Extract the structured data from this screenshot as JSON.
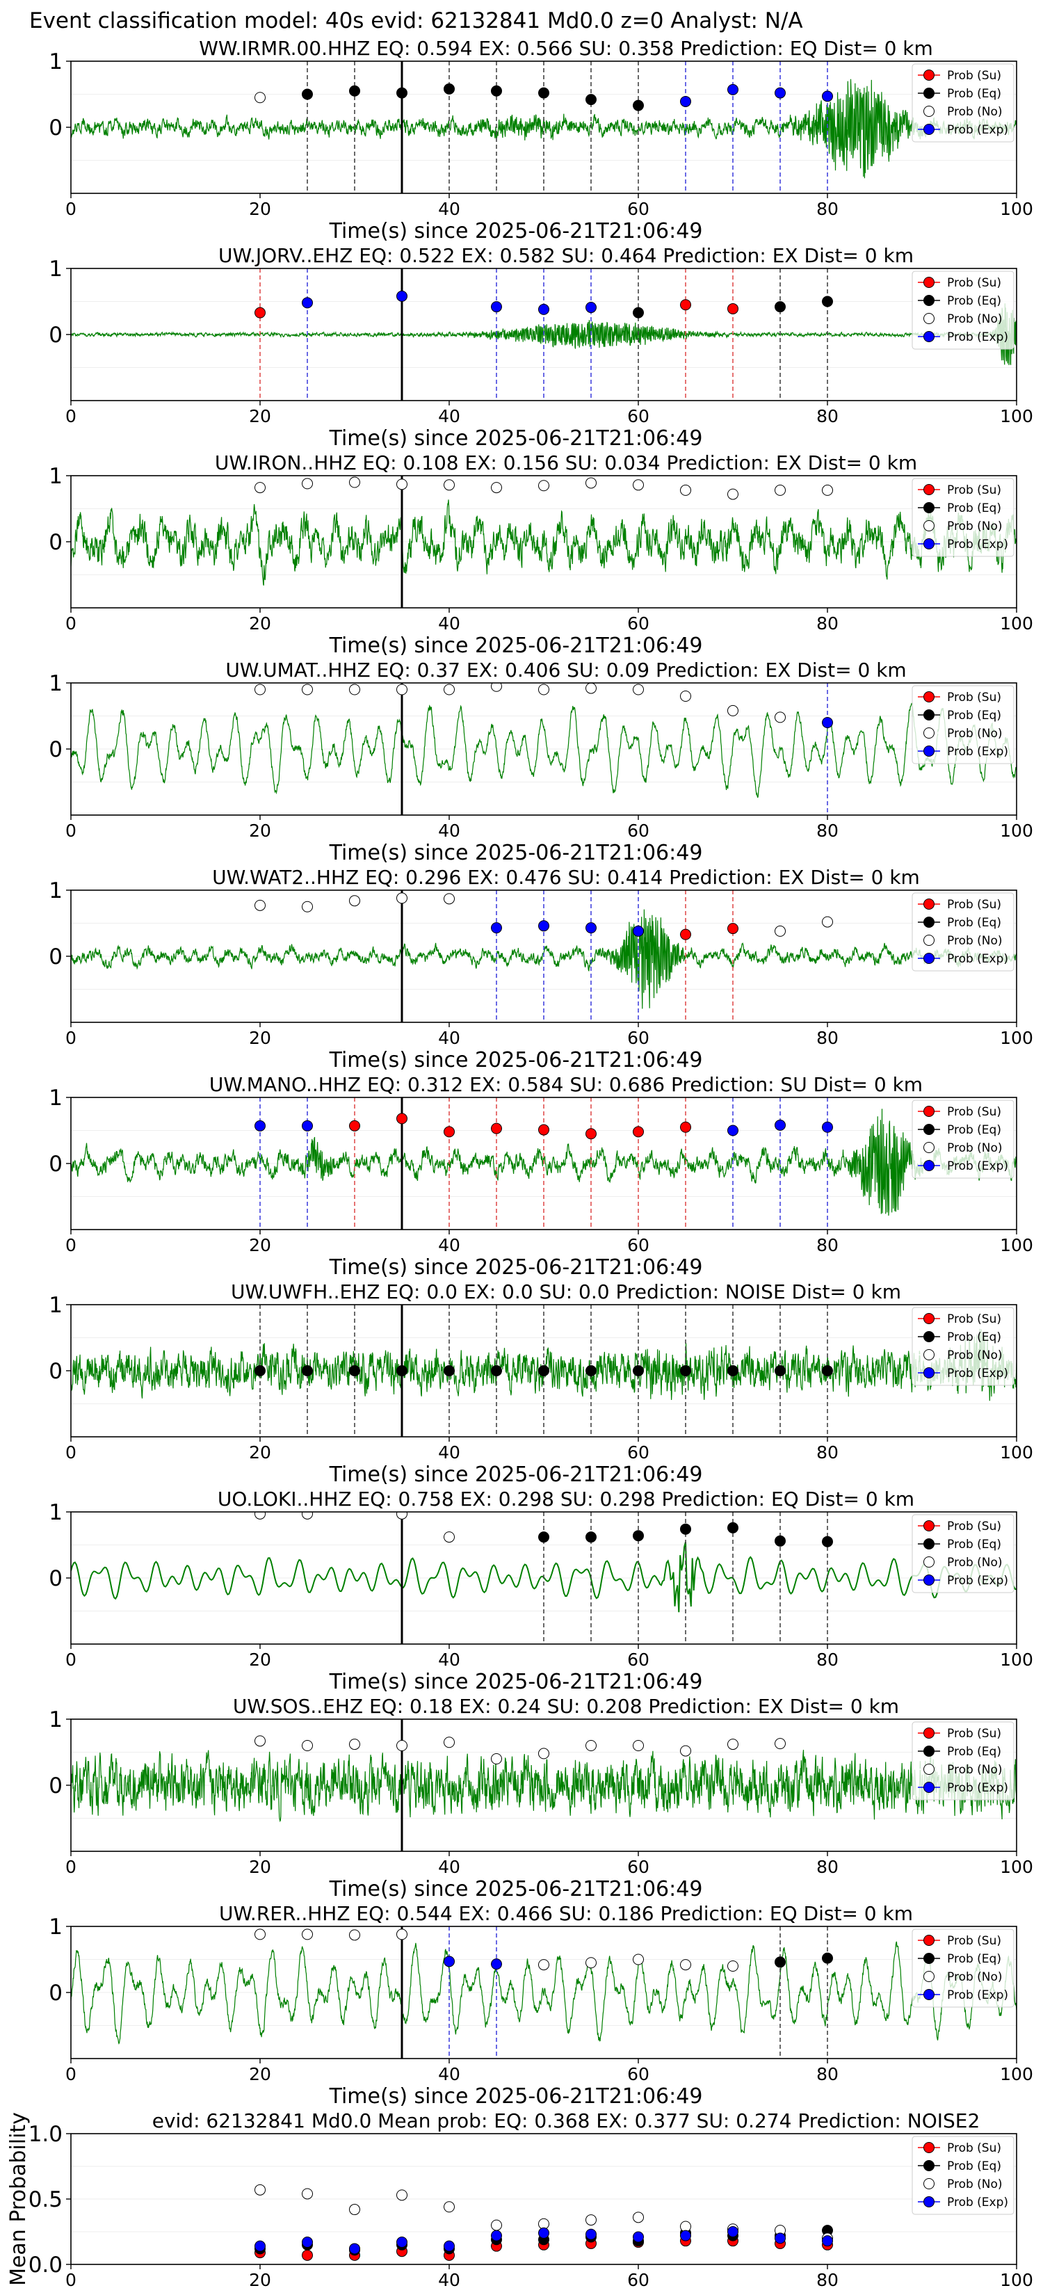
{
  "header": {
    "title": "Event classification model: 40s evid: 62132841 Md0.0 z=0 Analyst: N/A"
  },
  "legend_labels": [
    "Prob (Su)",
    "Prob (Eq)",
    "Prob (No)",
    "Prob (Exp)"
  ],
  "colors": {
    "su": "#ff0000",
    "eq": "#000000",
    "no": "#ffffff",
    "exp": "#0000ff",
    "trace": "#008000"
  },
  "chart_data": [
    {
      "type": "line",
      "title": "WW.IRMR.00.HHZ   EQ: 0.594  EX: 0.566  SU: 0.358   Prediction: EQ    Dist= 0 km",
      "xlabel": "Time(s) since 2025-06-21T21:06:49",
      "ylabel": "",
      "xlim": [
        0,
        100
      ],
      "ylim": [
        -1,
        1
      ],
      "xticks": [
        "0",
        "20",
        "40",
        "60",
        "80",
        "100"
      ],
      "yticks": [
        "1",
        "0"
      ],
      "vline": 35,
      "trace": {
        "noise": 0.08,
        "events": [
          {
            "t": 48,
            "amp": 0.12,
            "dur": 10
          },
          {
            "t": 83,
            "amp": 0.75,
            "dur": 9
          }
        ],
        "lowfreq": 0.05,
        "seed": 11
      },
      "windows": [
        {
          "t": 20,
          "cls": "no",
          "p": 0.45
        },
        {
          "t": 25,
          "cls": "eq",
          "p": 0.5
        },
        {
          "t": 30,
          "cls": "eq",
          "p": 0.55
        },
        {
          "t": 35,
          "cls": "eq",
          "p": 0.52
        },
        {
          "t": 40,
          "cls": "eq",
          "p": 0.58
        },
        {
          "t": 45,
          "cls": "eq",
          "p": 0.55
        },
        {
          "t": 50,
          "cls": "eq",
          "p": 0.52
        },
        {
          "t": 55,
          "cls": "eq",
          "p": 0.42
        },
        {
          "t": 60,
          "cls": "eq",
          "p": 0.33
        },
        {
          "t": 65,
          "cls": "exp",
          "p": 0.39
        },
        {
          "t": 70,
          "cls": "exp",
          "p": 0.57
        },
        {
          "t": 75,
          "cls": "exp",
          "p": 0.52
        },
        {
          "t": 80,
          "cls": "exp",
          "p": 0.47
        }
      ]
    },
    {
      "type": "line",
      "title": "UW.JORV..EHZ   EQ: 0.522  EX: 0.582  SU: 0.464   Prediction: EX    Dist= 0 km",
      "xlabel": "Time(s) since 2025-06-21T21:06:49",
      "ylabel": "",
      "xlim": [
        0,
        100
      ],
      "ylim": [
        -1,
        1
      ],
      "xticks": [
        "0",
        "20",
        "40",
        "60",
        "80",
        "100"
      ],
      "yticks": [
        "1",
        "0"
      ],
      "vline": 35,
      "trace": {
        "noise": 0.02,
        "events": [
          {
            "t": 55,
            "amp": 0.22,
            "dur": 18
          },
          {
            "t": 99,
            "amp": 0.6,
            "dur": 2
          }
        ],
        "lowfreq": 0.0,
        "seed": 23
      },
      "windows": [
        {
          "t": 20,
          "cls": "su",
          "p": 0.33
        },
        {
          "t": 25,
          "cls": "exp",
          "p": 0.48
        },
        {
          "t": 35,
          "cls": "exp",
          "p": 0.58
        },
        {
          "t": 45,
          "cls": "exp",
          "p": 0.42
        },
        {
          "t": 50,
          "cls": "exp",
          "p": 0.38
        },
        {
          "t": 55,
          "cls": "exp",
          "p": 0.41
        },
        {
          "t": 60,
          "cls": "eq",
          "p": 0.33
        },
        {
          "t": 65,
          "cls": "su",
          "p": 0.45
        },
        {
          "t": 70,
          "cls": "su",
          "p": 0.39
        },
        {
          "t": 75,
          "cls": "eq",
          "p": 0.42
        },
        {
          "t": 80,
          "cls": "eq",
          "p": 0.5
        }
      ]
    },
    {
      "type": "line",
      "title": "UW.IRON..HHZ   EQ: 0.108  EX: 0.156  SU: 0.034   Prediction: EX    Dist= 0 km",
      "xlabel": "Time(s) since 2025-06-21T21:06:49",
      "ylabel": "",
      "xlim": [
        0,
        100
      ],
      "ylim": [
        -1,
        1
      ],
      "xticks": [
        "0",
        "20",
        "40",
        "60",
        "80",
        "100"
      ],
      "yticks": [
        "1",
        "0"
      ],
      "vline": 35,
      "trace": {
        "noise": 0.18,
        "events": [],
        "lowfreq": 0.22,
        "seed": 37
      },
      "windows": [
        {
          "t": 20,
          "cls": "no",
          "p": 0.82
        },
        {
          "t": 25,
          "cls": "no",
          "p": 0.88
        },
        {
          "t": 30,
          "cls": "no",
          "p": 0.9
        },
        {
          "t": 35,
          "cls": "no",
          "p": 0.87
        },
        {
          "t": 40,
          "cls": "no",
          "p": 0.86
        },
        {
          "t": 45,
          "cls": "no",
          "p": 0.82
        },
        {
          "t": 50,
          "cls": "no",
          "p": 0.85
        },
        {
          "t": 55,
          "cls": "no",
          "p": 0.89
        },
        {
          "t": 60,
          "cls": "no",
          "p": 0.86
        },
        {
          "t": 65,
          "cls": "no",
          "p": 0.78
        },
        {
          "t": 70,
          "cls": "no",
          "p": 0.72
        },
        {
          "t": 75,
          "cls": "no",
          "p": 0.78
        },
        {
          "t": 80,
          "cls": "no",
          "p": 0.78
        }
      ]
    },
    {
      "type": "line",
      "title": "UW.UMAT..HHZ   EQ: 0.37  EX: 0.406  SU: 0.09   Prediction: EX    Dist= 0 km",
      "xlabel": "Time(s) since 2025-06-21T21:06:49",
      "ylabel": "",
      "xlim": [
        0,
        100
      ],
      "ylim": [
        -1,
        1
      ],
      "xticks": [
        "0",
        "20",
        "40",
        "60",
        "80",
        "100"
      ],
      "yticks": [
        "1",
        "0"
      ],
      "vline": 35,
      "trace": {
        "noise": 0.05,
        "events": [],
        "lowfreq": 0.42,
        "seed": 41
      },
      "windows": [
        {
          "t": 20,
          "cls": "no",
          "p": 0.9
        },
        {
          "t": 25,
          "cls": "no",
          "p": 0.9
        },
        {
          "t": 30,
          "cls": "no",
          "p": 0.9
        },
        {
          "t": 35,
          "cls": "no",
          "p": 0.9
        },
        {
          "t": 40,
          "cls": "no",
          "p": 0.9
        },
        {
          "t": 45,
          "cls": "no",
          "p": 0.95
        },
        {
          "t": 50,
          "cls": "no",
          "p": 0.9
        },
        {
          "t": 55,
          "cls": "no",
          "p": 0.92
        },
        {
          "t": 60,
          "cls": "no",
          "p": 0.9
        },
        {
          "t": 65,
          "cls": "no",
          "p": 0.8
        },
        {
          "t": 70,
          "cls": "no",
          "p": 0.58
        },
        {
          "t": 75,
          "cls": "no",
          "p": 0.48
        },
        {
          "t": 80,
          "cls": "exp",
          "p": 0.4
        }
      ]
    },
    {
      "type": "line",
      "title": "UW.WAT2..HHZ   EQ: 0.296  EX: 0.476  SU: 0.414   Prediction: EX    Dist= 0 km",
      "xlabel": "Time(s) since 2025-06-21T21:06:49",
      "ylabel": "",
      "xlim": [
        0,
        100
      ],
      "ylim": [
        -1,
        1
      ],
      "xticks": [
        "0",
        "20",
        "40",
        "60",
        "80",
        "100"
      ],
      "yticks": [
        "1",
        "0"
      ],
      "vline": 35,
      "trace": {
        "noise": 0.06,
        "events": [
          {
            "t": 61,
            "amp": 0.85,
            "dur": 5
          }
        ],
        "lowfreq": 0.08,
        "seed": 53
      },
      "windows": [
        {
          "t": 20,
          "cls": "no",
          "p": 0.77
        },
        {
          "t": 25,
          "cls": "no",
          "p": 0.75
        },
        {
          "t": 30,
          "cls": "no",
          "p": 0.84
        },
        {
          "t": 35,
          "cls": "no",
          "p": 0.88
        },
        {
          "t": 40,
          "cls": "no",
          "p": 0.87
        },
        {
          "t": 45,
          "cls": "exp",
          "p": 0.43
        },
        {
          "t": 50,
          "cls": "exp",
          "p": 0.46
        },
        {
          "t": 55,
          "cls": "exp",
          "p": 0.43
        },
        {
          "t": 60,
          "cls": "exp",
          "p": 0.38
        },
        {
          "t": 65,
          "cls": "su",
          "p": 0.33
        },
        {
          "t": 70,
          "cls": "su",
          "p": 0.42
        },
        {
          "t": 75,
          "cls": "no",
          "p": 0.38
        },
        {
          "t": 80,
          "cls": "no",
          "p": 0.52
        }
      ]
    },
    {
      "type": "line",
      "title": "UW.MANO..HHZ   EQ: 0.312  EX: 0.584  SU: 0.686   Prediction: SU    Dist= 0 km",
      "xlabel": "Time(s) since 2025-06-21T21:06:49",
      "ylabel": "",
      "xlim": [
        0,
        100
      ],
      "ylim": [
        -1,
        1
      ],
      "xticks": [
        "0",
        "20",
        "40",
        "60",
        "80",
        "100"
      ],
      "yticks": [
        "1",
        "0"
      ],
      "vline": 35,
      "trace": {
        "noise": 0.09,
        "events": [
          {
            "t": 26,
            "amp": 0.25,
            "dur": 3
          },
          {
            "t": 86,
            "amp": 0.9,
            "dur": 5
          }
        ],
        "lowfreq": 0.12,
        "seed": 67
      },
      "windows": [
        {
          "t": 20,
          "cls": "exp",
          "p": 0.57
        },
        {
          "t": 25,
          "cls": "exp",
          "p": 0.57
        },
        {
          "t": 30,
          "cls": "su",
          "p": 0.57
        },
        {
          "t": 35,
          "cls": "su",
          "p": 0.68
        },
        {
          "t": 40,
          "cls": "su",
          "p": 0.48
        },
        {
          "t": 45,
          "cls": "su",
          "p": 0.53
        },
        {
          "t": 50,
          "cls": "su",
          "p": 0.51
        },
        {
          "t": 55,
          "cls": "su",
          "p": 0.45
        },
        {
          "t": 60,
          "cls": "su",
          "p": 0.48
        },
        {
          "t": 65,
          "cls": "su",
          "p": 0.55
        },
        {
          "t": 70,
          "cls": "exp",
          "p": 0.5
        },
        {
          "t": 75,
          "cls": "exp",
          "p": 0.58
        },
        {
          "t": 80,
          "cls": "exp",
          "p": 0.55
        }
      ]
    },
    {
      "type": "line",
      "title": "UW.UWFH..EHZ   EQ: 0.0  EX: 0.0  SU: 0.0   Prediction: NOISE    Dist= 0 km",
      "xlabel": "Time(s) since 2025-06-21T21:06:49",
      "ylabel": "",
      "xlim": [
        0,
        100
      ],
      "ylim": [
        -1,
        1
      ],
      "xticks": [
        "0",
        "20",
        "40",
        "60",
        "80",
        "100"
      ],
      "yticks": [
        "1",
        "0"
      ],
      "vline": 35,
      "trace": {
        "noise": 0.22,
        "events": [
          {
            "t": 64,
            "amp": 0.15,
            "dur": 12
          },
          {
            "t": 96,
            "amp": 0.35,
            "dur": 4
          }
        ],
        "lowfreq": 0.05,
        "seed": 71
      },
      "windows": [
        {
          "t": 20,
          "cls": "eq",
          "p": 0.0
        },
        {
          "t": 25,
          "cls": "eq",
          "p": 0.0
        },
        {
          "t": 30,
          "cls": "eq",
          "p": 0.0
        },
        {
          "t": 35,
          "cls": "eq",
          "p": 0.0
        },
        {
          "t": 40,
          "cls": "eq",
          "p": 0.0
        },
        {
          "t": 45,
          "cls": "eq",
          "p": 0.0
        },
        {
          "t": 50,
          "cls": "eq",
          "p": 0.0
        },
        {
          "t": 55,
          "cls": "eq",
          "p": 0.0
        },
        {
          "t": 60,
          "cls": "eq",
          "p": 0.0
        },
        {
          "t": 65,
          "cls": "eq",
          "p": 0.0
        },
        {
          "t": 70,
          "cls": "eq",
          "p": 0.0
        },
        {
          "t": 75,
          "cls": "eq",
          "p": 0.0
        },
        {
          "t": 80,
          "cls": "eq",
          "p": 0.0
        }
      ]
    },
    {
      "type": "line",
      "title": "UO.LOKI..HHZ   EQ: 0.758  EX: 0.298  SU: 0.298   Prediction: EQ    Dist= 0 km",
      "xlabel": "Time(s) since 2025-06-21T21:06:49",
      "ylabel": "",
      "xlim": [
        0,
        100
      ],
      "ylim": [
        -1,
        1
      ],
      "xticks": [
        "0",
        "20",
        "40",
        "60",
        "80",
        "100"
      ],
      "yticks": [
        "1",
        "0"
      ],
      "vline": 35,
      "trace": {
        "noise": 0.0,
        "events": [
          {
            "t": 65,
            "amp": 0.7,
            "dur": 3
          }
        ],
        "lowfreq": 0.2,
        "seed": 83,
        "smooth": true
      },
      "windows": [
        {
          "t": 20,
          "cls": "no",
          "p": 0.97
        },
        {
          "t": 25,
          "cls": "no",
          "p": 0.97
        },
        {
          "t": 35,
          "cls": "no",
          "p": 0.97
        },
        {
          "t": 40,
          "cls": "no",
          "p": 0.62
        },
        {
          "t": 50,
          "cls": "eq",
          "p": 0.62
        },
        {
          "t": 55,
          "cls": "eq",
          "p": 0.62
        },
        {
          "t": 60,
          "cls": "eq",
          "p": 0.64
        },
        {
          "t": 65,
          "cls": "eq",
          "p": 0.74
        },
        {
          "t": 70,
          "cls": "eq",
          "p": 0.76
        },
        {
          "t": 75,
          "cls": "eq",
          "p": 0.56
        },
        {
          "t": 80,
          "cls": "eq",
          "p": 0.55
        }
      ]
    },
    {
      "type": "line",
      "title": "UW.SOS..EHZ   EQ: 0.18  EX: 0.24  SU: 0.208   Prediction: EX    Dist= 0 km",
      "xlabel": "Time(s) since 2025-06-21T21:06:49",
      "ylabel": "",
      "xlim": [
        0,
        100
      ],
      "ylim": [
        -1,
        1
      ],
      "xticks": [
        "0",
        "20",
        "40",
        "60",
        "80",
        "100"
      ],
      "yticks": [
        "1",
        "0"
      ],
      "vline": 35,
      "trace": {
        "noise": 0.3,
        "events": [],
        "lowfreq": 0.03,
        "seed": 97
      },
      "windows": [
        {
          "t": 20,
          "cls": "no",
          "p": 0.67
        },
        {
          "t": 25,
          "cls": "no",
          "p": 0.6
        },
        {
          "t": 30,
          "cls": "no",
          "p": 0.62
        },
        {
          "t": 35,
          "cls": "no",
          "p": 0.6
        },
        {
          "t": 40,
          "cls": "no",
          "p": 0.65
        },
        {
          "t": 45,
          "cls": "no",
          "p": 0.4
        },
        {
          "t": 50,
          "cls": "no",
          "p": 0.48
        },
        {
          "t": 55,
          "cls": "no",
          "p": 0.6
        },
        {
          "t": 60,
          "cls": "no",
          "p": 0.6
        },
        {
          "t": 65,
          "cls": "no",
          "p": 0.52
        },
        {
          "t": 70,
          "cls": "no",
          "p": 0.62
        },
        {
          "t": 75,
          "cls": "no",
          "p": 0.63
        }
      ]
    },
    {
      "type": "line",
      "title": "UW.RER..HHZ   EQ: 0.544  EX: 0.466  SU: 0.186   Prediction: EQ    Dist= 0 km",
      "xlabel": "Time(s) since 2025-06-21T21:06:49",
      "ylabel": "",
      "xlim": [
        0,
        100
      ],
      "ylim": [
        -1,
        1
      ],
      "xticks": [
        "0",
        "20",
        "40",
        "60",
        "80",
        "100"
      ],
      "yticks": [
        "1",
        "0"
      ],
      "vline": 35,
      "trace": {
        "noise": 0.06,
        "events": [],
        "lowfreq": 0.45,
        "seed": 101
      },
      "windows": [
        {
          "t": 20,
          "cls": "no",
          "p": 0.88
        },
        {
          "t": 25,
          "cls": "no",
          "p": 0.88
        },
        {
          "t": 30,
          "cls": "no",
          "p": 0.87
        },
        {
          "t": 35,
          "cls": "no",
          "p": 0.88
        },
        {
          "t": 40,
          "cls": "exp",
          "p": 0.47
        },
        {
          "t": 45,
          "cls": "exp",
          "p": 0.43
        },
        {
          "t": 50,
          "cls": "no",
          "p": 0.42
        },
        {
          "t": 55,
          "cls": "no",
          "p": 0.45
        },
        {
          "t": 60,
          "cls": "no",
          "p": 0.5
        },
        {
          "t": 65,
          "cls": "no",
          "p": 0.42
        },
        {
          "t": 70,
          "cls": "no",
          "p": 0.4
        },
        {
          "t": 75,
          "cls": "eq",
          "p": 0.46
        },
        {
          "t": 80,
          "cls": "eq",
          "p": 0.52
        }
      ]
    },
    {
      "type": "scatter",
      "title": "evid: 62132841  Md0.0   Mean prob:   EQ: 0.368  EX: 0.377  SU: 0.274   Prediction: NOISE2",
      "xlabel": "",
      "ylabel": "Mean Probability",
      "xlim": [
        0,
        100
      ],
      "ylim": [
        0,
        1
      ],
      "xticks": [
        "0",
        "20",
        "40",
        "60",
        "80",
        "100"
      ],
      "yticks": [
        "1.0",
        "0.5",
        "0.0"
      ],
      "x": [
        20,
        25,
        30,
        35,
        40,
        45,
        50,
        55,
        60,
        65,
        70,
        75,
        80
      ],
      "series": [
        {
          "name": "Prob (Su)",
          "cls": "su",
          "values": [
            0.09,
            0.07,
            0.07,
            0.1,
            0.07,
            0.14,
            0.15,
            0.16,
            0.17,
            0.18,
            0.18,
            0.16,
            0.15
          ]
        },
        {
          "name": "Prob (Eq)",
          "cls": "eq",
          "values": [
            0.12,
            0.15,
            0.11,
            0.15,
            0.12,
            0.19,
            0.19,
            0.21,
            0.18,
            0.24,
            0.22,
            0.22,
            0.26
          ]
        },
        {
          "name": "Prob (No)",
          "cls": "no",
          "values": [
            0.57,
            0.54,
            0.42,
            0.53,
            0.44,
            0.3,
            0.31,
            0.34,
            0.36,
            0.29,
            0.27,
            0.26,
            0.2
          ]
        },
        {
          "name": "Prob (Exp)",
          "cls": "exp",
          "values": [
            0.14,
            0.17,
            0.12,
            0.17,
            0.14,
            0.22,
            0.24,
            0.23,
            0.21,
            0.22,
            0.25,
            0.2,
            0.18
          ]
        }
      ]
    }
  ]
}
